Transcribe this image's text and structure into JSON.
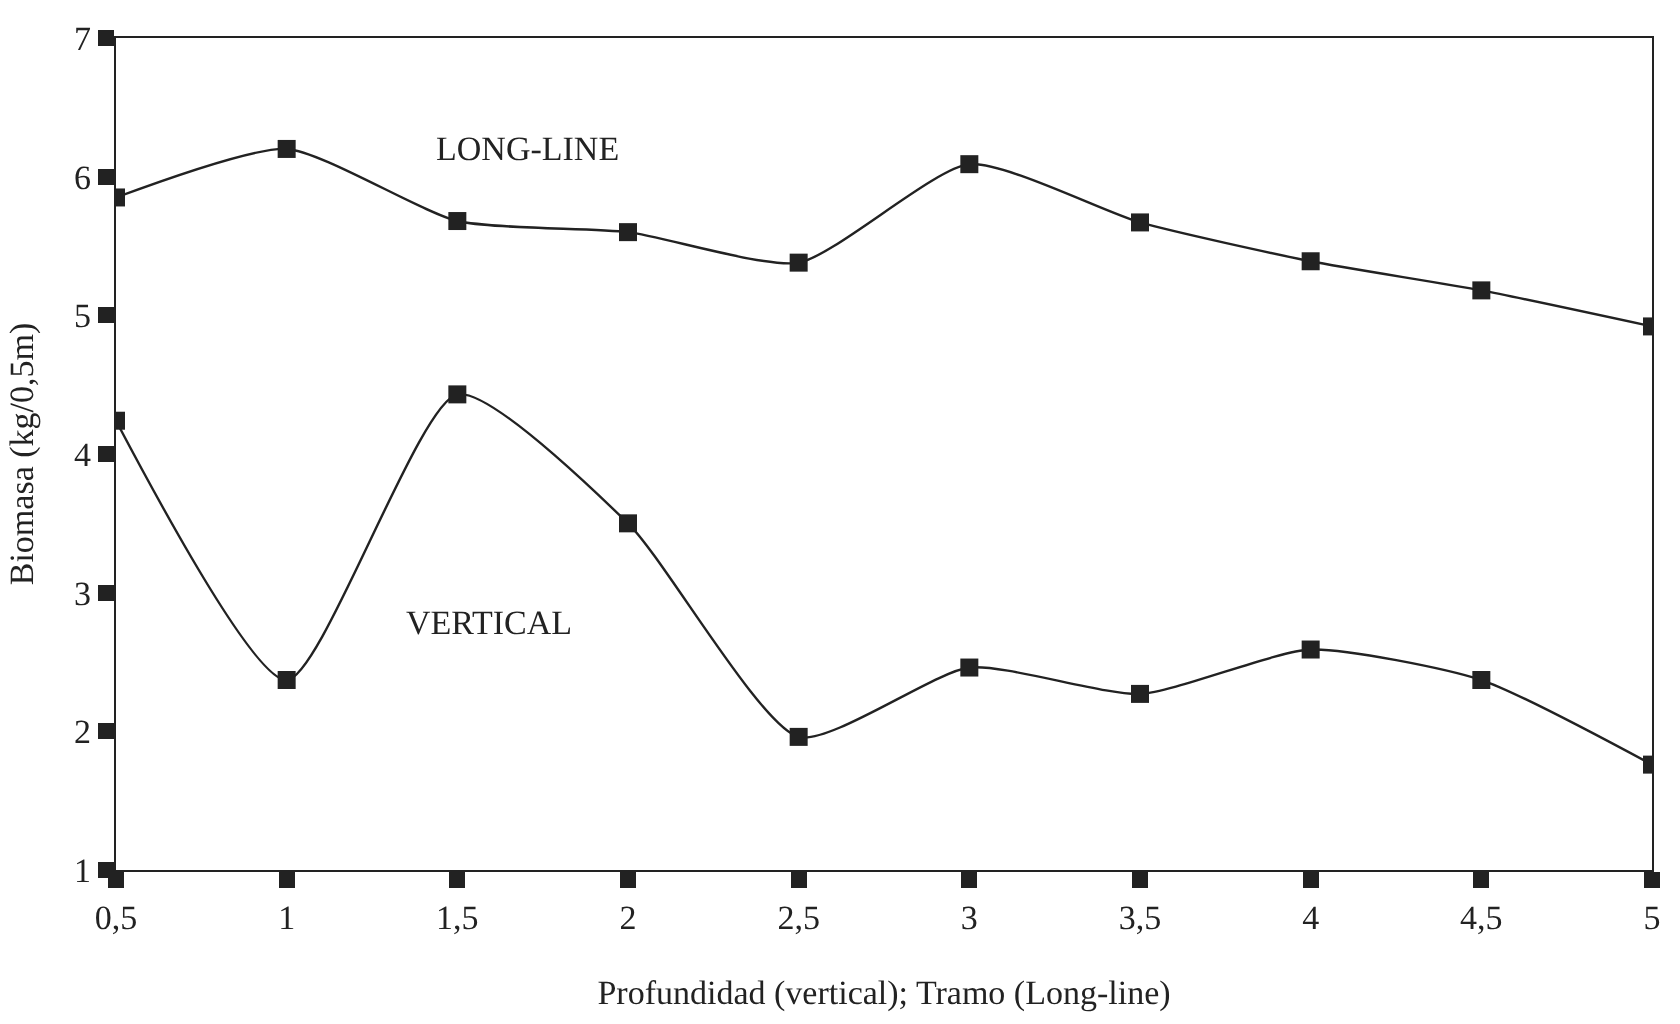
{
  "chart_data": {
    "type": "line",
    "xlabel": "Profundidad (vertical); Tramo (Long-line)",
    "ylabel": "Biomasa (kg/0,5m)",
    "x": [
      0.5,
      1,
      1.5,
      2,
      2.5,
      3,
      3.5,
      4,
      4.5,
      5
    ],
    "series": [
      {
        "name": "LONG-LINE",
        "color": "#222222",
        "values": [
          5.85,
          6.2,
          5.68,
          5.6,
          5.38,
          6.09,
          5.67,
          5.39,
          5.18,
          4.92
        ]
      },
      {
        "name": "VERTICAL",
        "color": "#222222",
        "values": [
          4.24,
          2.37,
          4.43,
          3.5,
          1.96,
          2.46,
          2.27,
          2.59,
          2.37,
          1.76
        ]
      }
    ],
    "xlim": [
      0.5,
      5
    ],
    "ylim": [
      1,
      7
    ],
    "xticks": [
      {
        "value": 0.5,
        "label": "0,5"
      },
      1,
      {
        "value": 1.5,
        "label": "1,5"
      },
      2,
      {
        "value": 2.5,
        "label": "2,5"
      },
      3,
      {
        "value": 3.5,
        "label": "3,5"
      },
      4,
      {
        "value": 4.5,
        "label": "4,5"
      },
      5
    ],
    "yticks": [
      1,
      2,
      3,
      4,
      5,
      6,
      7
    ],
    "legend": false,
    "marker": "square",
    "line_style": "solid"
  }
}
